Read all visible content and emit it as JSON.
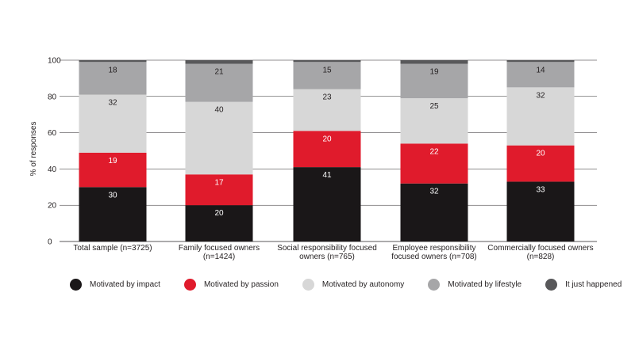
{
  "chart_data": {
    "type": "bar",
    "stacked": true,
    "title": "",
    "xlabel": "",
    "ylabel": "% of responses",
    "ylim": [
      0,
      100
    ],
    "yticks": [
      0,
      20,
      40,
      60,
      80,
      100
    ],
    "grid": true,
    "legend_position": "bottom",
    "categories": [
      [
        "Total sample (n=3725)"
      ],
      [
        "Family focused owners",
        "(n=1424)"
      ],
      [
        "Social responsibility focused",
        "owners (n=765)"
      ],
      [
        "Employee responsibility",
        "focused owners (n=708)"
      ],
      [
        "Commercially focused owners",
        "(n=828)"
      ]
    ],
    "series": [
      {
        "name": "Motivated by impact",
        "color": "#1a1718",
        "label_color": "#ffffff",
        "values": [
          30,
          20,
          41,
          32,
          33
        ]
      },
      {
        "name": "Motivated by passion",
        "color": "#e01b2c",
        "label_color": "#ffffff",
        "values": [
          19,
          17,
          20,
          22,
          20
        ]
      },
      {
        "name": "Motivated by autonomy",
        "color": "#d7d7d7",
        "label_color": "#231f20",
        "values": [
          32,
          40,
          23,
          25,
          32
        ]
      },
      {
        "name": "Motivated by lifestyle",
        "color": "#a6a6a8",
        "label_color": "#231f20",
        "values": [
          18,
          21,
          15,
          19,
          14
        ]
      },
      {
        "name": "It just happened",
        "color": "#58585a",
        "label_color": "#ffffff",
        "values": [
          1,
          2,
          1,
          2,
          1
        ]
      }
    ],
    "show_labels_for_series": [
      0,
      1,
      2,
      3
    ]
  }
}
